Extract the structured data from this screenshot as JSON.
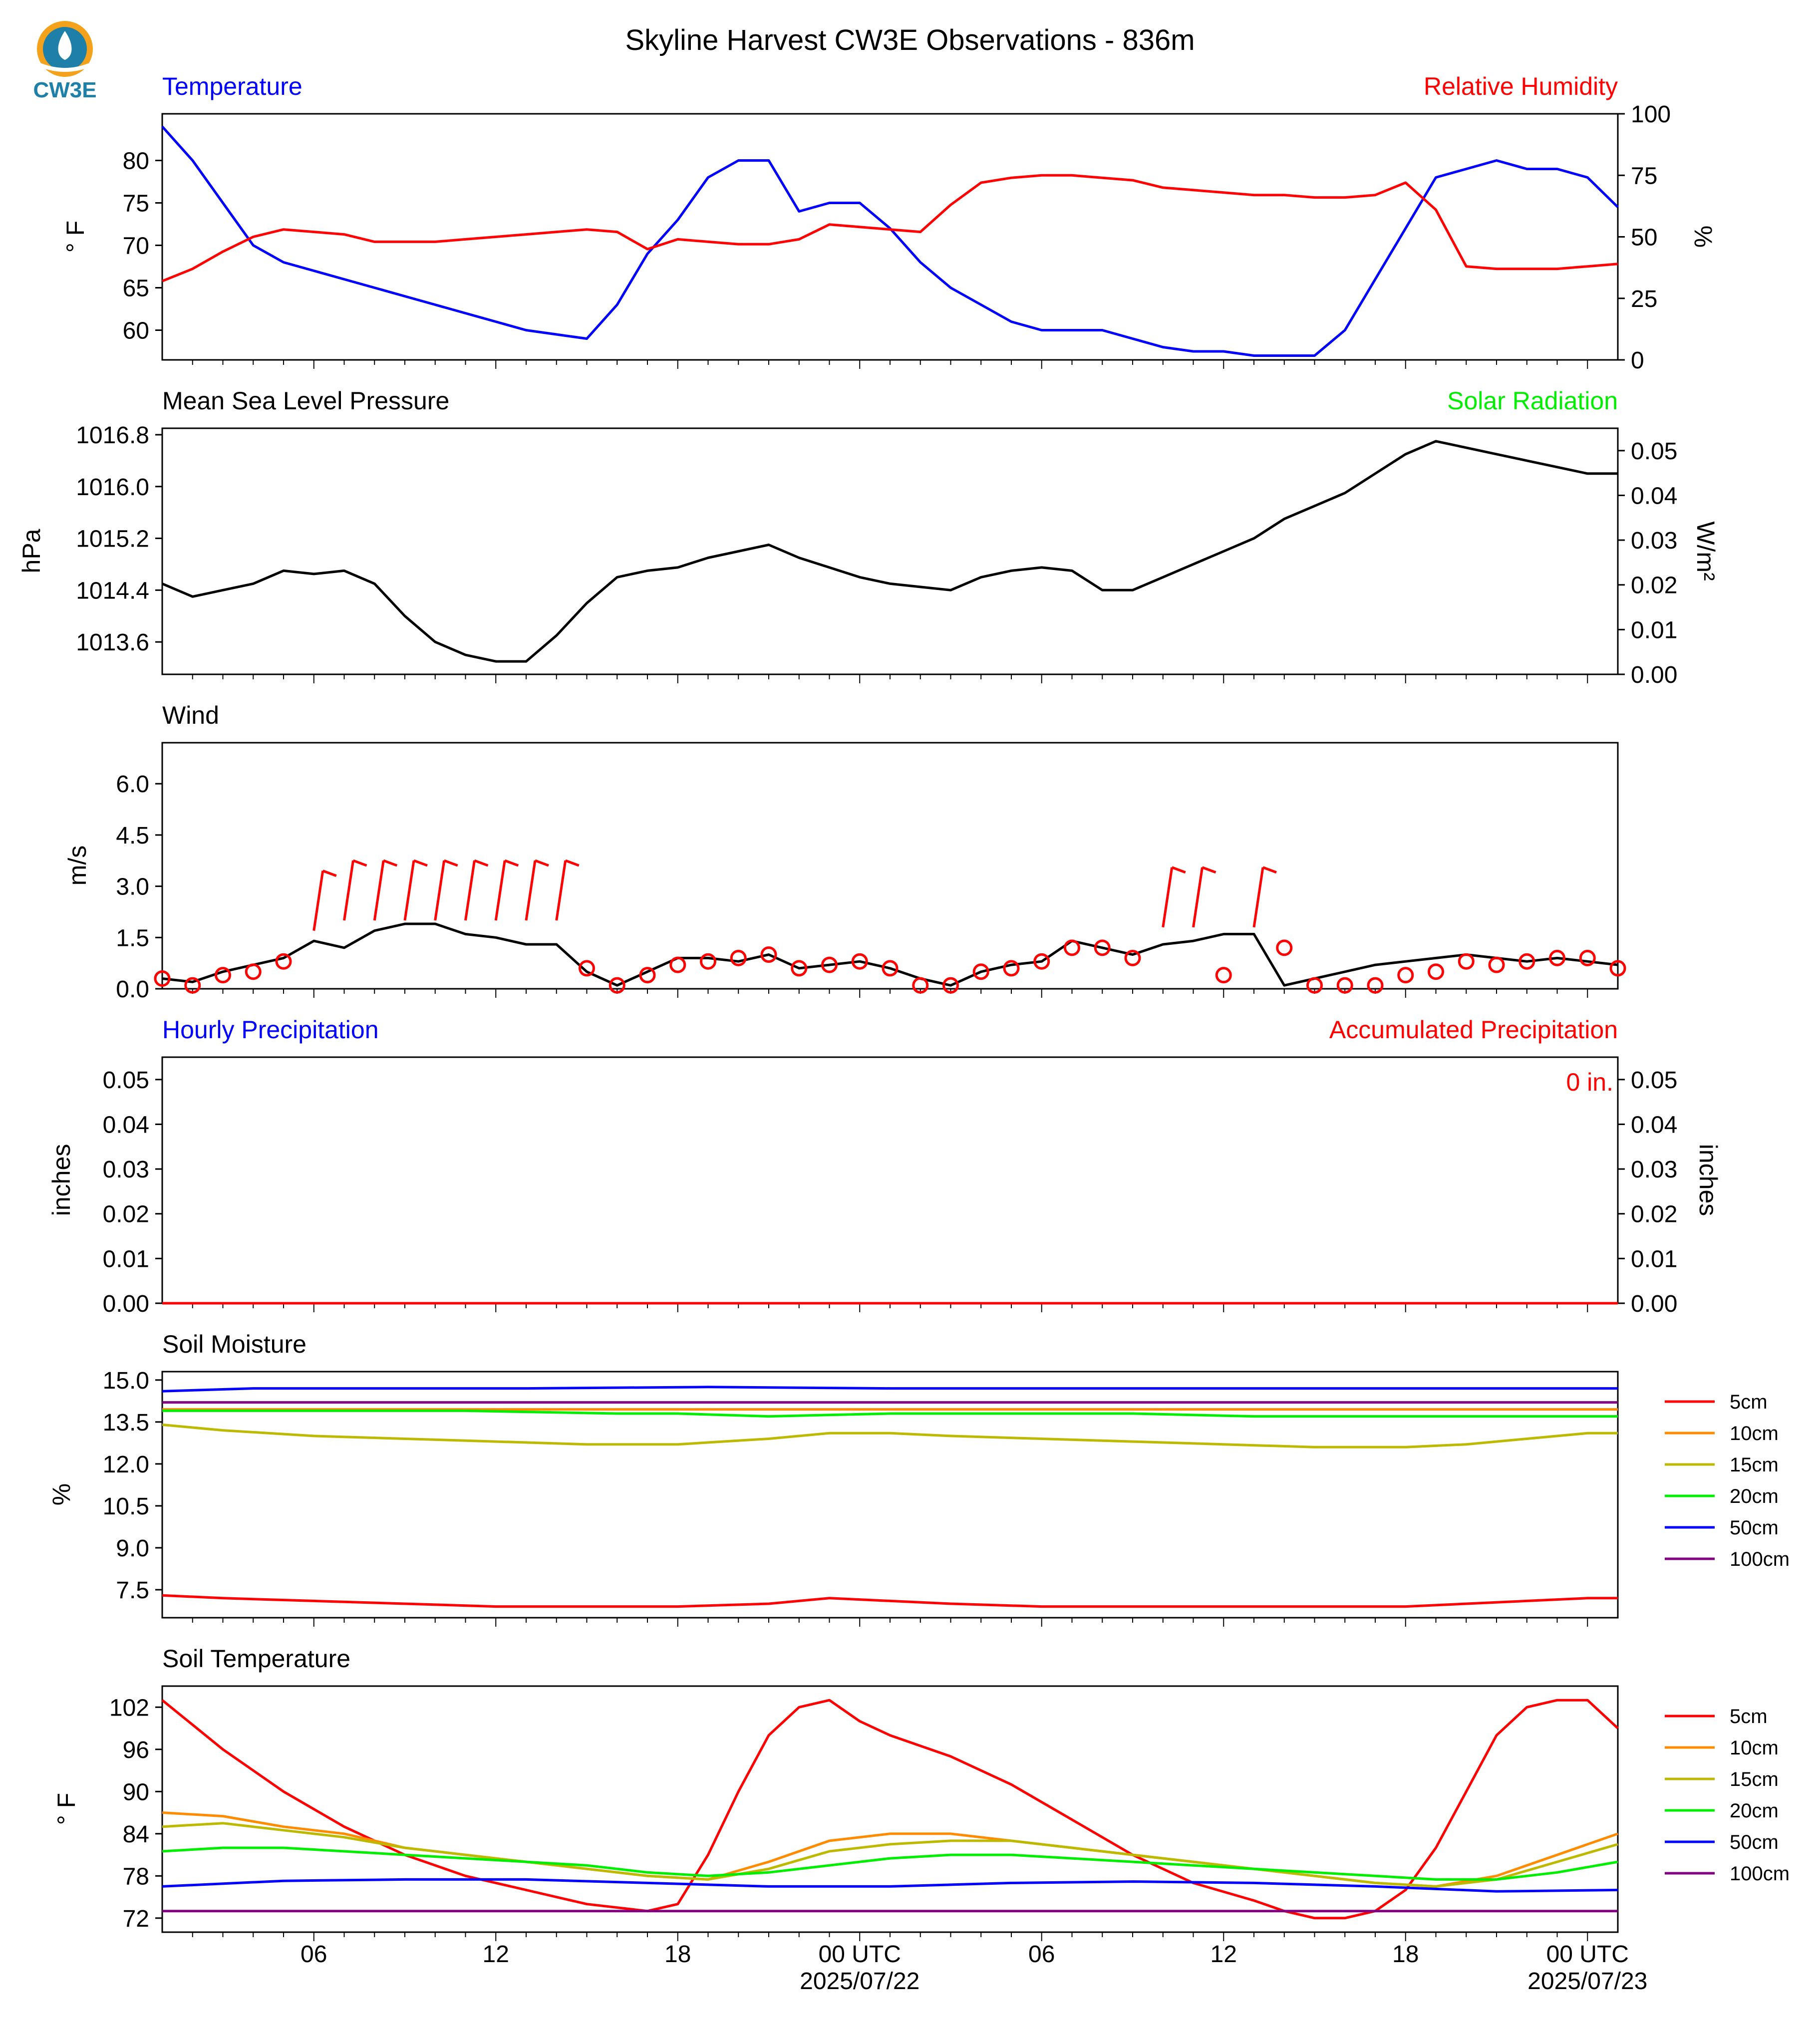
{
  "title": "Skyline Harvest CW3E Observations - 836m",
  "logo": {
    "text": "CW3E",
    "color_main": "#1e7fa8",
    "color_accent": "#f4a21b"
  },
  "x_axis": {
    "x_range_hours": [
      0,
      48
    ],
    "ticks": [
      {
        "hour": 5,
        "label": "06",
        "sub": ""
      },
      {
        "hour": 11,
        "label": "12",
        "sub": ""
      },
      {
        "hour": 17,
        "label": "18",
        "sub": ""
      },
      {
        "hour": 23,
        "label": "00 UTC",
        "sub": "2025/07/22"
      },
      {
        "hour": 29,
        "label": "06",
        "sub": ""
      },
      {
        "hour": 35,
        "label": "12",
        "sub": ""
      },
      {
        "hour": 41,
        "label": "18",
        "sub": ""
      },
      {
        "hour": 47,
        "label": "00 UTC",
        "sub": "2025/07/23"
      }
    ]
  },
  "colors": {
    "temperature": "#0000ff",
    "humidity": "#ff0000",
    "pressure": "#000000",
    "solar": "#00ee00",
    "wind": "#000000",
    "barb": "#ff0000",
    "hourly_precip": "#0000ff",
    "accum_precip": "#ff0000"
  },
  "panels": [
    {
      "id": "temp",
      "label_left": "Temperature",
      "label_right": "Relative Humidity",
      "ylabel_left": "° F",
      "ylabel_right": "%",
      "ylim_left": [
        56.5,
        85.5
      ],
      "ylim_right": [
        0,
        100
      ],
      "yticks_left": [
        "60",
        "65",
        "70",
        "75",
        "80"
      ],
      "yticks_right": [
        "0",
        "25",
        "50",
        "75",
        "100"
      ]
    },
    {
      "id": "pres",
      "label_left": "Mean Sea Level Pressure",
      "label_right": "Solar Radiation",
      "ylabel_left": "hPa",
      "ylabel_right": "W/m²",
      "ylim_left": [
        1013.1,
        1016.9
      ],
      "ylim_right": [
        0,
        0.055
      ],
      "yticks_left": [
        "1013.6",
        "1014.4",
        "1015.2",
        "1016.0",
        "1016.8"
      ],
      "yticks_right": [
        "0.00",
        "0.01",
        "0.02",
        "0.03",
        "0.04",
        "0.05"
      ]
    },
    {
      "id": "wind",
      "label_left": "Wind",
      "label_right": "",
      "ylabel_left": "m/s",
      "ylim_left": [
        0,
        7.2
      ],
      "yticks_left": [
        "0.0",
        "1.5",
        "3.0",
        "4.5",
        "6.0"
      ]
    },
    {
      "id": "precip",
      "label_left": "Hourly Precipitation",
      "label_right": "Accumulated Precipitation",
      "ylabel_left": "inches",
      "ylabel_right": "inches",
      "ylim_left": [
        0,
        0.055
      ],
      "ylim_right": [
        0,
        0.055
      ],
      "yticks_left": [
        "0.00",
        "0.01",
        "0.02",
        "0.03",
        "0.04",
        "0.05"
      ],
      "yticks_right": [
        "0.00",
        "0.01",
        "0.02",
        "0.03",
        "0.04",
        "0.05"
      ],
      "annotation": "0 in."
    },
    {
      "id": "soilm",
      "label_left": "Soil Moisture",
      "ylabel_left": "%",
      "ylim_left": [
        6.5,
        15.3
      ],
      "yticks_left": [
        "7.5",
        "9.0",
        "10.5",
        "12.0",
        "13.5",
        "15.0"
      ]
    },
    {
      "id": "soilt",
      "label_left": "Soil Temperature",
      "ylabel_left": "° F",
      "ylim_left": [
        70,
        105
      ],
      "yticks_left": [
        "72",
        "78",
        "84",
        "90",
        "96",
        "102"
      ]
    }
  ],
  "legend": [
    {
      "label": "5cm",
      "color": "#ff0000"
    },
    {
      "label": "10cm",
      "color": "#ff8c00"
    },
    {
      "label": "15cm",
      "color": "#bdb800"
    },
    {
      "label": "20cm",
      "color": "#00ee00"
    },
    {
      "label": "50cm",
      "color": "#0000ff"
    },
    {
      "label": "100cm",
      "color": "#800080"
    }
  ],
  "chart_data": [
    {
      "type": "line",
      "panel": "temp",
      "name": "Temperature",
      "axis": "left",
      "x": [
        0,
        1,
        2,
        3,
        4,
        5,
        6,
        7,
        8,
        9,
        10,
        11,
        12,
        13,
        14,
        15,
        16,
        17,
        18,
        19,
        20,
        21,
        22,
        23,
        24,
        25,
        26,
        27,
        28,
        29,
        30,
        31,
        32,
        33,
        34,
        35,
        36,
        37,
        38,
        39,
        40,
        41,
        42,
        43,
        44,
        45,
        46,
        47,
        48
      ],
      "y": [
        84,
        80,
        75,
        70,
        68,
        67,
        66,
        65,
        64,
        63,
        62,
        61,
        60,
        59.5,
        59,
        63,
        69,
        73,
        78,
        80,
        80,
        74,
        75,
        75,
        72,
        68,
        65,
        63,
        61,
        60,
        60,
        60,
        59,
        58,
        57.5,
        57.5,
        57,
        57,
        57,
        60,
        66,
        72,
        78,
        79,
        80,
        79,
        79,
        78,
        74.5
      ]
    },
    {
      "type": "line",
      "panel": "temp",
      "name": "Relative Humidity",
      "axis": "right",
      "x": [
        0,
        1,
        2,
        3,
        4,
        5,
        6,
        7,
        8,
        9,
        10,
        11,
        12,
        13,
        14,
        15,
        16,
        17,
        18,
        19,
        20,
        21,
        22,
        23,
        24,
        25,
        26,
        27,
        28,
        29,
        30,
        31,
        32,
        33,
        34,
        35,
        36,
        37,
        38,
        39,
        40,
        41,
        42,
        43,
        44,
        45,
        46,
        47,
        48
      ],
      "y": [
        32,
        37,
        44,
        50,
        53,
        52,
        51,
        48,
        48,
        48,
        49,
        50,
        51,
        52,
        53,
        52,
        45,
        49,
        48,
        47,
        47,
        49,
        55,
        54,
        53,
        52,
        63,
        72,
        74,
        75,
        75,
        74,
        73,
        70,
        69,
        68,
        67,
        67,
        66,
        66,
        67,
        72,
        61,
        38,
        37,
        37,
        37,
        38,
        39
      ]
    },
    {
      "type": "line",
      "panel": "pres",
      "name": "Mean Sea Level Pressure",
      "axis": "left",
      "x": [
        0,
        1,
        2,
        3,
        4,
        5,
        6,
        7,
        8,
        9,
        10,
        11,
        12,
        13,
        14,
        15,
        16,
        17,
        18,
        19,
        20,
        21,
        22,
        23,
        24,
        25,
        26,
        27,
        28,
        29,
        30,
        31,
        32,
        33,
        34,
        35,
        36,
        37,
        38,
        39,
        40,
        41,
        42,
        43,
        44,
        45,
        46,
        47,
        48
      ],
      "y": [
        1014.5,
        1014.3,
        1014.4,
        1014.5,
        1014.7,
        1014.65,
        1014.7,
        1014.5,
        1014.0,
        1013.6,
        1013.4,
        1013.3,
        1013.3,
        1013.7,
        1014.2,
        1014.6,
        1014.7,
        1014.75,
        1014.9,
        1015.0,
        1015.1,
        1014.9,
        1014.75,
        1014.6,
        1014.5,
        1014.45,
        1014.4,
        1014.6,
        1014.7,
        1014.75,
        1014.7,
        1014.4,
        1014.4,
        1014.6,
        1014.8,
        1015.0,
        1015.2,
        1015.5,
        1015.7,
        1015.9,
        1016.2,
        1016.5,
        1016.7,
        1016.6,
        1016.5,
        1016.4,
        1016.3,
        1016.2,
        1016.2
      ]
    },
    {
      "type": "line",
      "panel": "wind",
      "name": "Wind",
      "x": [
        0,
        1,
        2,
        3,
        4,
        5,
        6,
        7,
        8,
        9,
        10,
        11,
        12,
        13,
        14,
        15,
        16,
        17,
        18,
        19,
        20,
        21,
        22,
        23,
        24,
        25,
        26,
        27,
        28,
        29,
        30,
        31,
        32,
        33,
        34,
        35,
        36,
        37,
        38,
        39,
        40,
        41,
        42,
        43,
        44,
        45,
        46,
        47,
        48
      ],
      "y": [
        0.3,
        0.2,
        0.5,
        0.7,
        0.9,
        1.4,
        1.2,
        1.7,
        1.9,
        1.9,
        1.6,
        1.5,
        1.3,
        1.3,
        0.5,
        0.1,
        0.5,
        0.9,
        0.9,
        0.8,
        1.0,
        0.6,
        0.7,
        0.8,
        0.6,
        0.3,
        0.1,
        0.5,
        0.7,
        0.8,
        1.4,
        1.2,
        1.0,
        1.3,
        1.4,
        1.6,
        1.6,
        0.1,
        0.3,
        0.5,
        0.7,
        0.8,
        0.9,
        1.0,
        0.9,
        0.8,
        0.9,
        0.8,
        0.7
      ]
    },
    {
      "type": "scatter",
      "panel": "wind",
      "name": "Wind barbs",
      "x": [
        0,
        1,
        2,
        3,
        4,
        5,
        6,
        7,
        8,
        9,
        10,
        11,
        12,
        13,
        14,
        15,
        16,
        17,
        18,
        19,
        20,
        21,
        22,
        23,
        24,
        25,
        26,
        27,
        28,
        29,
        30,
        31,
        32,
        33,
        34,
        35,
        36,
        37,
        38,
        39,
        40,
        41,
        42,
        43,
        44,
        45,
        46,
        47,
        48
      ],
      "y": [
        0.3,
        0.1,
        0.4,
        0.5,
        0.8,
        1.7,
        2.0,
        2.0,
        2.0,
        2.0,
        2.0,
        2.0,
        2.0,
        2.0,
        0.6,
        0.1,
        0.4,
        0.7,
        0.8,
        0.9,
        1.0,
        0.6,
        0.7,
        0.8,
        0.6,
        0.1,
        0.1,
        0.5,
        0.6,
        0.8,
        1.2,
        1.2,
        0.9,
        1.8,
        1.8,
        0.4,
        1.8,
        1.2,
        0.1,
        0.1,
        0.1,
        0.4,
        0.5,
        0.8,
        0.7,
        0.8,
        0.9,
        0.9,
        0.6
      ]
    },
    {
      "type": "line",
      "panel": "precip",
      "name": "Accumulated Precipitation",
      "x": [
        0,
        48
      ],
      "y": [
        0,
        0
      ]
    },
    {
      "type": "line",
      "panel": "soilm",
      "name": "5cm",
      "x": [
        0,
        2,
        5,
        8,
        11,
        14,
        17,
        20,
        22,
        24,
        26,
        29,
        32,
        35,
        38,
        41,
        43,
        45,
        47,
        48
      ],
      "y": [
        7.3,
        7.2,
        7.1,
        7.0,
        6.9,
        6.9,
        6.9,
        7.0,
        7.2,
        7.1,
        7.0,
        6.9,
        6.9,
        6.9,
        6.9,
        6.9,
        7.0,
        7.1,
        7.2,
        7.2
      ]
    },
    {
      "type": "line",
      "panel": "soilm",
      "name": "10cm",
      "x": [
        0,
        48
      ],
      "y": [
        13.95,
        13.95
      ]
    },
    {
      "type": "line",
      "panel": "soilm",
      "name": "15cm",
      "x": [
        0,
        2,
        5,
        8,
        11,
        14,
        17,
        20,
        22,
        24,
        26,
        29,
        32,
        35,
        38,
        41,
        43,
        45,
        47,
        48
      ],
      "y": [
        13.4,
        13.2,
        13.0,
        12.9,
        12.8,
        12.7,
        12.7,
        12.9,
        13.1,
        13.1,
        13.0,
        12.9,
        12.8,
        12.7,
        12.6,
        12.6,
        12.7,
        12.9,
        13.1,
        13.1
      ]
    },
    {
      "type": "line",
      "panel": "soilm",
      "name": "20cm",
      "x": [
        0,
        5,
        10,
        15,
        17,
        20,
        24,
        28,
        32,
        36,
        40,
        44,
        48
      ],
      "y": [
        13.9,
        13.9,
        13.9,
        13.8,
        13.8,
        13.7,
        13.8,
        13.8,
        13.8,
        13.7,
        13.7,
        13.7,
        13.7
      ]
    },
    {
      "type": "line",
      "panel": "soilm",
      "name": "50cm",
      "x": [
        0,
        3,
        6,
        12,
        18,
        24,
        30,
        36,
        42,
        48
      ],
      "y": [
        14.6,
        14.7,
        14.7,
        14.7,
        14.75,
        14.7,
        14.7,
        14.7,
        14.7,
        14.7
      ]
    },
    {
      "type": "line",
      "panel": "soilm",
      "name": "100cm",
      "x": [
        0,
        48
      ],
      "y": [
        14.2,
        14.2
      ]
    },
    {
      "type": "line",
      "panel": "soilt",
      "name": "5cm",
      "x": [
        0,
        2,
        4,
        6,
        8,
        10,
        12,
        14,
        15,
        16,
        17,
        18,
        19,
        20,
        21,
        22,
        23,
        24,
        26,
        28,
        30,
        32,
        34,
        36,
        37,
        38,
        39,
        40,
        41,
        42,
        43,
        44,
        45,
        46,
        47,
        48
      ],
      "y": [
        103,
        96,
        90,
        85,
        81,
        78,
        76,
        74,
        73.5,
        73,
        74,
        81,
        90,
        98,
        102,
        103,
        100,
        98,
        95,
        91,
        86,
        81,
        77,
        74.5,
        73,
        72,
        72,
        73,
        76,
        82,
        90,
        98,
        102,
        103,
        103,
        99
      ]
    },
    {
      "type": "line",
      "panel": "soilt",
      "name": "10cm",
      "x": [
        0,
        2,
        4,
        6,
        8,
        10,
        12,
        14,
        16,
        18,
        20,
        22,
        24,
        26,
        28,
        30,
        32,
        34,
        36,
        38,
        40,
        42,
        44,
        46,
        48
      ],
      "y": [
        87,
        86.5,
        85,
        84,
        82,
        81,
        80,
        79,
        78,
        77.5,
        80,
        83,
        84,
        84,
        83,
        82,
        81,
        80,
        79,
        78,
        77,
        76.5,
        78,
        81,
        84
      ]
    },
    {
      "type": "line",
      "panel": "soilt",
      "name": "15cm",
      "x": [
        0,
        2,
        4,
        6,
        8,
        10,
        12,
        14,
        16,
        18,
        20,
        22,
        24,
        26,
        28,
        30,
        32,
        34,
        36,
        38,
        40,
        42,
        44,
        46,
        48
      ],
      "y": [
        85,
        85.5,
        84.5,
        83.5,
        82,
        81,
        80,
        79,
        78,
        77.5,
        79,
        81.5,
        82.5,
        83,
        83,
        82,
        81,
        80,
        79,
        78,
        77,
        76.5,
        77.5,
        80,
        82.5
      ]
    },
    {
      "type": "line",
      "panel": "soilt",
      "name": "20cm",
      "x": [
        0,
        2,
        4,
        6,
        8,
        10,
        12,
        14,
        16,
        18,
        20,
        22,
        24,
        26,
        28,
        30,
        32,
        34,
        36,
        38,
        40,
        42,
        44,
        46,
        48
      ],
      "y": [
        81.5,
        82,
        82,
        81.5,
        81,
        80.5,
        80,
        79.5,
        78.5,
        78,
        78.5,
        79.5,
        80.5,
        81,
        81,
        80.5,
        80,
        79.5,
        79,
        78.5,
        78,
        77.5,
        77.5,
        78.5,
        80
      ]
    },
    {
      "type": "line",
      "panel": "soilt",
      "name": "50cm",
      "x": [
        0,
        4,
        8,
        12,
        16,
        20,
        24,
        28,
        32,
        36,
        40,
        44,
        48
      ],
      "y": [
        76.5,
        77.3,
        77.5,
        77.5,
        77,
        76.5,
        76.5,
        77,
        77.2,
        77,
        76.5,
        75.8,
        76
      ]
    },
    {
      "type": "line",
      "panel": "soilt",
      "name": "100cm",
      "x": [
        0,
        12,
        24,
        36,
        48
      ],
      "y": [
        73,
        73,
        73,
        73,
        73
      ]
    }
  ]
}
